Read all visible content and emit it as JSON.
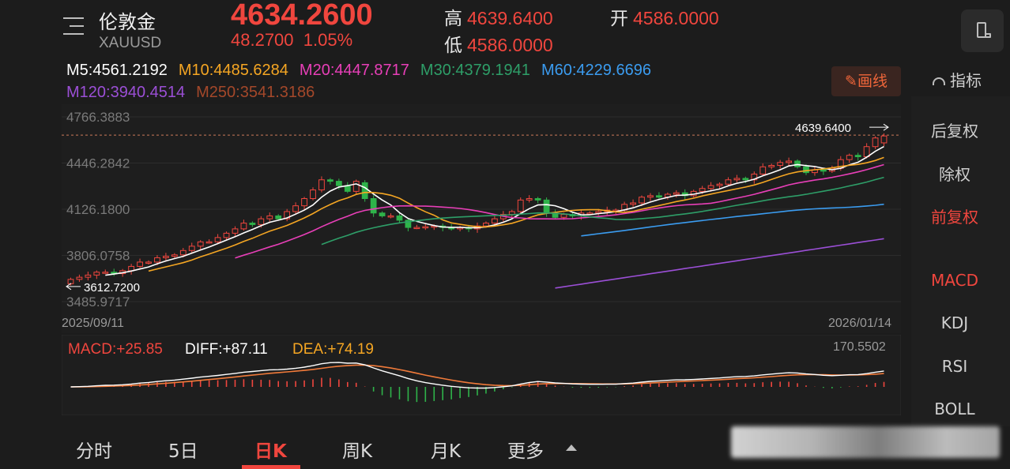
{
  "header": {
    "name": "伦敦金",
    "symbol": "XAUUSD",
    "price": "4634.2600",
    "change": "48.2700",
    "change_pct": "1.05%",
    "high_label": "高",
    "high": "4639.6400",
    "open_label": "开",
    "open": "4586.0000",
    "low_label": "低",
    "low": "4586.0000"
  },
  "ma": {
    "m5": "M5:4561.2192",
    "m10": "M10:4485.6284",
    "m20": "M20:4447.8717",
    "m30": "M30:4379.1941",
    "m60": "M60:4229.6696",
    "m120": "M120:3940.4514",
    "m250": "M250:3541.3186"
  },
  "colors": {
    "up": "#f0463e",
    "down": "#2fb34a",
    "m5": "#ffffff",
    "m10": "#f5a623",
    "m20": "#e83fb8",
    "m30": "#2e9e68",
    "m60": "#3b9cf0",
    "m120": "#9b4fd6",
    "m250": "#a4482a"
  },
  "toolbar": {
    "draw_label": "画线",
    "indicator_label": "指标"
  },
  "side_menu": {
    "items": [
      "后复权",
      "除权",
      "前复权",
      "MACD",
      "KDJ",
      "RSI",
      "BOLL"
    ]
  },
  "chart_data": {
    "type": "candlestick",
    "y_ticks": [
      "4766.3883",
      "4446.2842",
      "4126.1800",
      "3806.0758",
      "3485.9717"
    ],
    "ylim": [
      3485.9717,
      4766.3883
    ],
    "x_start_label": "2025/09/11",
    "x_end_label": "2026/01/14",
    "max_marker": "4639.6400",
    "min_marker": "3612.7200",
    "dashed_level": 4639.64,
    "closes": [
      3640,
      3655,
      3670,
      3690,
      3690,
      3680,
      3700,
      3730,
      3760,
      3760,
      3790,
      3800,
      3810,
      3840,
      3870,
      3900,
      3900,
      3930,
      3960,
      3990,
      4030,
      4020,
      4060,
      4080,
      4060,
      4110,
      4150,
      4200,
      4260,
      4330,
      4320,
      4290,
      4250,
      4320,
      4200,
      4100,
      4080,
      4080,
      4050,
      4000,
      4000,
      4005,
      4010,
      4000,
      3990,
      4000,
      3990,
      4010,
      4030,
      4060,
      4090,
      4110,
      4190,
      4200,
      4190,
      4100,
      4070,
      4090,
      4080,
      4100,
      4100,
      4110,
      4120,
      4120,
      4160,
      4170,
      4210,
      4220,
      4210,
      4230,
      4240,
      4220,
      4250,
      4270,
      4290,
      4300,
      4330,
      4340,
      4330,
      4370,
      4420,
      4430,
      4450,
      4460,
      4420,
      4380,
      4400,
      4390,
      4410,
      4470,
      4500,
      4490,
      4560,
      4620,
      4634
    ],
    "opens": [
      3610,
      3640,
      3655,
      3670,
      3690,
      3690,
      3680,
      3700,
      3730,
      3760,
      3760,
      3790,
      3800,
      3810,
      3840,
      3870,
      3900,
      3900,
      3930,
      3960,
      3990,
      4030,
      4020,
      4060,
      4080,
      4060,
      4110,
      4150,
      4200,
      4260,
      4330,
      4320,
      4290,
      4250,
      4310,
      4200,
      4100,
      4080,
      4080,
      4050,
      4000,
      4000,
      4005,
      4010,
      4000,
      3990,
      4000,
      3990,
      4010,
      4030,
      4060,
      4090,
      4110,
      4190,
      4200,
      4190,
      4100,
      4070,
      4090,
      4080,
      4100,
      4100,
      4110,
      4120,
      4120,
      4160,
      4170,
      4210,
      4220,
      4210,
      4230,
      4240,
      4220,
      4250,
      4270,
      4290,
      4300,
      4330,
      4340,
      4330,
      4370,
      4420,
      4430,
      4450,
      4460,
      4420,
      4380,
      4400,
      4390,
      4410,
      4470,
      4500,
      4490,
      4560,
      4586
    ],
    "macd_label": "MACD:+25.85",
    "diff_label": "DIFF:+87.11",
    "dea_label": "DEA:+74.19",
    "macd_axis_max": "170.5502"
  },
  "tabs": {
    "items": [
      "分时",
      "5日",
      "日K",
      "周K",
      "月K",
      "更多"
    ],
    "active": "日K"
  }
}
